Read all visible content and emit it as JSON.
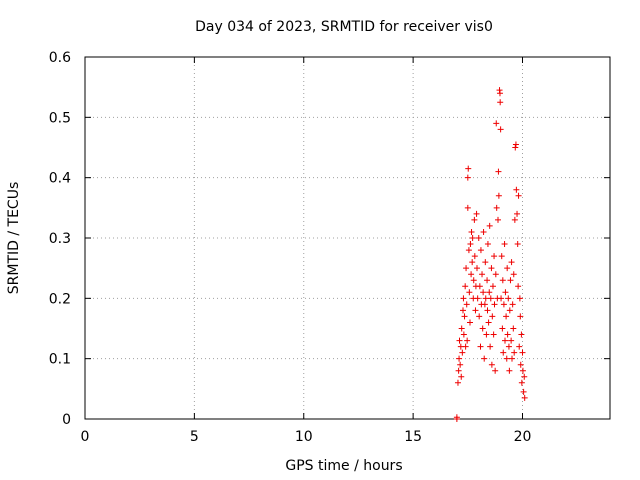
{
  "chart_data": {
    "type": "scatter",
    "title": "Day 034 of 2023, SRMTID for receiver vis0",
    "xlabel": "GPS time / hours",
    "ylabel": "SRMTID / TECUs",
    "xlim": [
      0,
      24
    ],
    "ylim": [
      0,
      0.6
    ],
    "xticks": [
      0,
      5,
      10,
      15,
      20
    ],
    "yticks": [
      0,
      0.1,
      0.2,
      0.3,
      0.4,
      0.5,
      0.6
    ],
    "xtick_labels": [
      "0",
      "5",
      "10",
      "15",
      "20"
    ],
    "ytick_labels": [
      "0",
      "0.1",
      "0.2",
      "0.3",
      "0.4",
      "0.5",
      "0.6"
    ],
    "grid": true,
    "marker": "+",
    "color": "#ee0000",
    "series": [
      {
        "name": "vis0",
        "points": [
          [
            17.0,
            0.0
          ],
          [
            17.0,
            0.003
          ],
          [
            17.05,
            0.06
          ],
          [
            17.08,
            0.08
          ],
          [
            17.1,
            0.1
          ],
          [
            17.12,
            0.13
          ],
          [
            17.15,
            0.09
          ],
          [
            17.18,
            0.12
          ],
          [
            17.2,
            0.07
          ],
          [
            17.22,
            0.15
          ],
          [
            17.25,
            0.11
          ],
          [
            17.28,
            0.18
          ],
          [
            17.3,
            0.2
          ],
          [
            17.32,
            0.14
          ],
          [
            17.35,
            0.17
          ],
          [
            17.38,
            0.22
          ],
          [
            17.4,
            0.12
          ],
          [
            17.42,
            0.25
          ],
          [
            17.45,
            0.19
          ],
          [
            17.47,
            0.13
          ],
          [
            17.5,
            0.35
          ],
          [
            17.5,
            0.4
          ],
          [
            17.52,
            0.415
          ],
          [
            17.55,
            0.28
          ],
          [
            17.57,
            0.21
          ],
          [
            17.6,
            0.16
          ],
          [
            17.62,
            0.29
          ],
          [
            17.65,
            0.24
          ],
          [
            17.67,
            0.31
          ],
          [
            17.7,
            0.26
          ],
          [
            17.72,
            0.3
          ],
          [
            17.75,
            0.2
          ],
          [
            17.77,
            0.23
          ],
          [
            17.8,
            0.33
          ],
          [
            17.82,
            0.27
          ],
          [
            17.85,
            0.18
          ],
          [
            17.87,
            0.22
          ],
          [
            17.9,
            0.34
          ],
          [
            17.92,
            0.25
          ],
          [
            17.95,
            0.2
          ],
          [
            18.0,
            0.3
          ],
          [
            18.02,
            0.17
          ],
          [
            18.05,
            0.22
          ],
          [
            18.08,
            0.12
          ],
          [
            18.1,
            0.28
          ],
          [
            18.12,
            0.19
          ],
          [
            18.15,
            0.24
          ],
          [
            18.18,
            0.15
          ],
          [
            18.2,
            0.21
          ],
          [
            18.22,
            0.31
          ],
          [
            18.25,
            0.1
          ],
          [
            18.28,
            0.19
          ],
          [
            18.3,
            0.26
          ],
          [
            18.32,
            0.2
          ],
          [
            18.35,
            0.14
          ],
          [
            18.38,
            0.23
          ],
          [
            18.4,
            0.18
          ],
          [
            18.42,
            0.29
          ],
          [
            18.45,
            0.16
          ],
          [
            18.48,
            0.21
          ],
          [
            18.5,
            0.32
          ],
          [
            18.52,
            0.12
          ],
          [
            18.55,
            0.2
          ],
          [
            18.58,
            0.25
          ],
          [
            18.6,
            0.09
          ],
          [
            18.62,
            0.17
          ],
          [
            18.65,
            0.22
          ],
          [
            18.68,
            0.14
          ],
          [
            18.7,
            0.27
          ],
          [
            18.72,
            0.19
          ],
          [
            18.75,
            0.08
          ],
          [
            18.78,
            0.24
          ],
          [
            18.8,
            0.49
          ],
          [
            18.82,
            0.35
          ],
          [
            18.85,
            0.2
          ],
          [
            18.88,
            0.33
          ],
          [
            18.9,
            0.41
          ],
          [
            18.92,
            0.37
          ],
          [
            18.95,
            0.545
          ],
          [
            18.97,
            0.54
          ],
          [
            18.98,
            0.525
          ],
          [
            19.0,
            0.48
          ],
          [
            19.02,
            0.2
          ],
          [
            19.05,
            0.27
          ],
          [
            19.08,
            0.15
          ],
          [
            19.1,
            0.23
          ],
          [
            19.12,
            0.11
          ],
          [
            19.15,
            0.19
          ],
          [
            19.18,
            0.29
          ],
          [
            19.2,
            0.13
          ],
          [
            19.22,
            0.21
          ],
          [
            19.25,
            0.17
          ],
          [
            19.28,
            0.1
          ],
          [
            19.3,
            0.25
          ],
          [
            19.32,
            0.14
          ],
          [
            19.35,
            0.2
          ],
          [
            19.38,
            0.12
          ],
          [
            19.4,
            0.08
          ],
          [
            19.42,
            0.18
          ],
          [
            19.45,
            0.23
          ],
          [
            19.48,
            0.13
          ],
          [
            19.5,
            0.26
          ],
          [
            19.52,
            0.1
          ],
          [
            19.55,
            0.19
          ],
          [
            19.58,
            0.15
          ],
          [
            19.6,
            0.24
          ],
          [
            19.62,
            0.11
          ],
          [
            19.65,
            0.33
          ],
          [
            19.67,
            0.45
          ],
          [
            19.7,
            0.455
          ],
          [
            19.72,
            0.38
          ],
          [
            19.75,
            0.34
          ],
          [
            19.78,
            0.29
          ],
          [
            19.8,
            0.22
          ],
          [
            19.82,
            0.37
          ],
          [
            19.85,
            0.12
          ],
          [
            19.88,
            0.2
          ],
          [
            19.9,
            0.17
          ],
          [
            19.92,
            0.09
          ],
          [
            19.95,
            0.14
          ],
          [
            19.97,
            0.06
          ],
          [
            20.0,
            0.11
          ],
          [
            20.02,
            0.08
          ],
          [
            20.05,
            0.045
          ],
          [
            20.08,
            0.07
          ],
          [
            20.1,
            0.035
          ]
        ]
      }
    ]
  }
}
